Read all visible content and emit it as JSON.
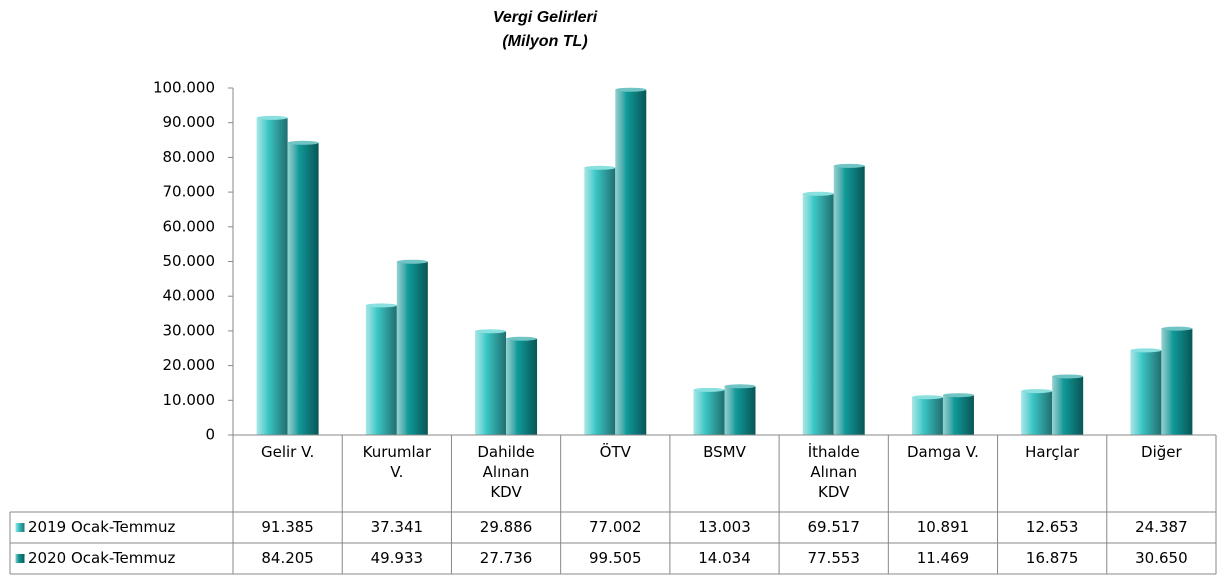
{
  "chart_data": {
    "type": "bar",
    "title": "Vergi Gelirleri",
    "subtitle": "(Milyon TL)",
    "categories": [
      "Gelir V.",
      "Kurumlar V.",
      "Dahilde Alınan KDV",
      "ÖTV",
      "BSMV",
      "İthalde Alınan KDV",
      "Damga V.",
      "Harçlar",
      "Diğer"
    ],
    "series": [
      {
        "name": "2019 Ocak-Temmuz",
        "color": "#3cc9c9",
        "values": [
          91385,
          37341,
          29886,
          77002,
          13003,
          69517,
          10891,
          12653,
          24387
        ],
        "value_labels": [
          "91.385",
          "37.341",
          "29.886",
          "77.002",
          "13.003",
          "69.517",
          "10.891",
          "12.653",
          "24.387"
        ]
      },
      {
        "name": "2020 Ocak-Temmuz",
        "color": "#109c9c",
        "values": [
          84205,
          49933,
          27736,
          99505,
          14034,
          77553,
          11469,
          16875,
          30650
        ],
        "value_labels": [
          "84.205",
          "49.933",
          "27.736",
          "99.505",
          "14.034",
          "77.553",
          "11.469",
          "16.875",
          "30.650"
        ]
      }
    ],
    "ylim": [
      0,
      100000
    ],
    "yticks": [
      0,
      {
        "value": 10000,
        "label": "10.000"
      },
      {
        "value": 20000,
        "label": "20.000"
      },
      {
        "value": 30000,
        "label": "30.000"
      },
      {
        "value": 40000,
        "label": "40.000"
      },
      {
        "value": 50000,
        "label": "50.000"
      },
      {
        "value": 60000,
        "label": "60.000"
      },
      {
        "value": 70000,
        "label": "70.000"
      },
      {
        "value": 80000,
        "label": "80.000"
      },
      {
        "value": 90000,
        "label": "90.000"
      },
      {
        "value": 100000,
        "label": "100.000"
      }
    ],
    "grid": false
  }
}
